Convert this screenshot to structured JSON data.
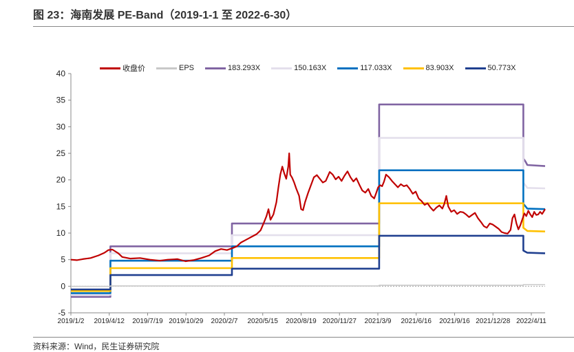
{
  "figure": {
    "title": "图 23：海南发展 PE-Band（2019-1-1 至 2022-6-30）",
    "source": "资料来源：Wind，民生证券研究院"
  },
  "colors": {
    "price": "#c00000",
    "eps": "#c8c8c8",
    "b1": "#8064a2",
    "b2": "#e4dfec",
    "b3": "#0070c0",
    "b4": "#ffc000",
    "b5": "#1f3f8f"
  },
  "chart_data": {
    "type": "line",
    "title": "",
    "xlabel": "",
    "ylabel": "",
    "ylim": [
      -5,
      40
    ],
    "yticks": [
      "40",
      "35",
      "30",
      "25",
      "20",
      "15",
      "10",
      "5",
      "0",
      "-5"
    ],
    "xticks": [
      "2019/1/2",
      "2019/4/12",
      "2019/7/19",
      "2019/10/29",
      "2020/2/7",
      "2020/5/15",
      "2020/8/19",
      "2020/11/27",
      "2021/3/9",
      "2021/6/16",
      "2021/9/16",
      "2021/12/28",
      "2022/4/11"
    ],
    "grid": false,
    "legend_position": "top",
    "series": [
      {
        "name": "收盘价",
        "color_key": "price",
        "points": [
          [
            0,
            5.0
          ],
          [
            6,
            4.9
          ],
          [
            12,
            5.1
          ],
          [
            20,
            5.3
          ],
          [
            28,
            5.8
          ],
          [
            34,
            6.3
          ],
          [
            38,
            6.8
          ],
          [
            42,
            6.9
          ],
          [
            48,
            6.2
          ],
          [
            52,
            5.5
          ],
          [
            60,
            5.2
          ],
          [
            70,
            5.3
          ],
          [
            80,
            5.0
          ],
          [
            90,
            4.8
          ],
          [
            98,
            5.0
          ],
          [
            108,
            5.1
          ],
          [
            116,
            4.7
          ],
          [
            124,
            4.9
          ],
          [
            132,
            5.3
          ],
          [
            140,
            5.8
          ],
          [
            146,
            6.6
          ],
          [
            152,
            7.0
          ],
          [
            158,
            6.8
          ],
          [
            164,
            7.2
          ],
          [
            168,
            7.5
          ],
          [
            172,
            8.2
          ],
          [
            176,
            8.6
          ],
          [
            180,
            9.0
          ],
          [
            184,
            9.4
          ],
          [
            188,
            9.8
          ],
          [
            192,
            10.5
          ],
          [
            195,
            11.8
          ],
          [
            198,
            13.2
          ],
          [
            200,
            14.5
          ],
          [
            202,
            12.5
          ],
          [
            205,
            13.5
          ],
          [
            208,
            15.8
          ],
          [
            210,
            18.5
          ],
          [
            212,
            21.0
          ],
          [
            214,
            22.5
          ],
          [
            216,
            21.2
          ],
          [
            218,
            20.2
          ],
          [
            220,
            22.5
          ],
          [
            221,
            25.0
          ],
          [
            222,
            21.0
          ],
          [
            224,
            20.4
          ],
          [
            226,
            19.5
          ],
          [
            228,
            18.4
          ],
          [
            231,
            17.0
          ],
          [
            233,
            14.5
          ],
          [
            235,
            14.3
          ],
          [
            237,
            15.8
          ],
          [
            240,
            17.5
          ],
          [
            243,
            19.0
          ],
          [
            246,
            20.5
          ],
          [
            249,
            20.9
          ],
          [
            252,
            20.2
          ],
          [
            255,
            19.5
          ],
          [
            258,
            19.8
          ],
          [
            262,
            21.5
          ],
          [
            265,
            21.0
          ],
          [
            268,
            20.1
          ],
          [
            271,
            20.6
          ],
          [
            274,
            19.8
          ],
          [
            277,
            20.8
          ],
          [
            280,
            21.6
          ],
          [
            283,
            20.5
          ],
          [
            286,
            19.7
          ],
          [
            289,
            20.3
          ],
          [
            292,
            19.1
          ],
          [
            295,
            18.0
          ],
          [
            298,
            17.6
          ],
          [
            301,
            18.3
          ],
          [
            304,
            17.0
          ],
          [
            307,
            16.5
          ],
          [
            309,
            17.5
          ],
          [
            311,
            18.6
          ],
          [
            313,
            19.0
          ],
          [
            315,
            18.8
          ],
          [
            317,
            19.7
          ],
          [
            319,
            21.0
          ],
          [
            322,
            20.5
          ],
          [
            325,
            19.8
          ],
          [
            328,
            19.2
          ],
          [
            331,
            18.6
          ],
          [
            334,
            19.2
          ],
          [
            337,
            18.8
          ],
          [
            340,
            19.0
          ],
          [
            343,
            18.3
          ],
          [
            346,
            17.4
          ],
          [
            349,
            17.8
          ],
          [
            352,
            16.5
          ],
          [
            355,
            16.0
          ],
          [
            358,
            15.3
          ],
          [
            361,
            15.6
          ],
          [
            364,
            14.8
          ],
          [
            367,
            14.2
          ],
          [
            370,
            14.8
          ],
          [
            373,
            15.2
          ],
          [
            376,
            14.6
          ],
          [
            378,
            15.5
          ],
          [
            380,
            17.0
          ],
          [
            382,
            15.0
          ],
          [
            385,
            14.0
          ],
          [
            388,
            14.3
          ],
          [
            391,
            13.6
          ],
          [
            394,
            14.0
          ],
          [
            397,
            13.9
          ],
          [
            400,
            13.5
          ],
          [
            403,
            13.0
          ],
          [
            406,
            13.4
          ],
          [
            409,
            13.8
          ],
          [
            412,
            12.8
          ],
          [
            415,
            12.1
          ],
          [
            418,
            11.3
          ],
          [
            421,
            11.0
          ],
          [
            424,
            11.8
          ],
          [
            427,
            11.6
          ],
          [
            430,
            11.2
          ],
          [
            433,
            10.8
          ],
          [
            436,
            10.2
          ],
          [
            439,
            10.0
          ],
          [
            442,
            9.9
          ],
          [
            445,
            10.6
          ],
          [
            447,
            12.8
          ],
          [
            449,
            13.5
          ],
          [
            451,
            11.8
          ],
          [
            453,
            10.7
          ],
          [
            455,
            11.5
          ],
          [
            457,
            12.6
          ],
          [
            459,
            13.7
          ],
          [
            461,
            13.2
          ],
          [
            463,
            14.2
          ],
          [
            465,
            13.5
          ],
          [
            467,
            13.0
          ],
          [
            469,
            14.0
          ],
          [
            471,
            13.4
          ],
          [
            473,
            13.5
          ],
          [
            475,
            14.0
          ],
          [
            477,
            13.6
          ],
          [
            479,
            14.2
          ],
          [
            480,
            14.5
          ]
        ]
      },
      {
        "name": "EPS",
        "color_key": "eps",
        "points": [
          [
            0,
            -0.04
          ],
          [
            40,
            -0.04
          ],
          [
            40,
            0.05
          ],
          [
            163,
            0.05
          ],
          [
            163,
            0.06
          ],
          [
            312,
            0.06
          ],
          [
            312,
            0.19
          ],
          [
            458,
            0.19
          ],
          [
            458,
            0.3
          ],
          [
            480,
            0.3
          ]
        ]
      },
      {
        "name": "183.293X",
        "color_key": "b1",
        "points": [
          [
            0,
            -2.0
          ],
          [
            40,
            -2.0
          ],
          [
            40,
            7.5
          ],
          [
            163,
            7.5
          ],
          [
            163,
            11.8
          ],
          [
            312,
            11.8
          ],
          [
            312,
            34.2
          ],
          [
            458,
            34.2
          ],
          [
            458,
            24.0
          ],
          [
            460,
            23.5
          ],
          [
            462,
            22.8
          ],
          [
            480,
            22.6
          ]
        ]
      },
      {
        "name": "150.163X",
        "color_key": "b2",
        "points": [
          [
            0,
            -1.6
          ],
          [
            40,
            -1.6
          ],
          [
            40,
            6.2
          ],
          [
            163,
            6.2
          ],
          [
            163,
            9.6
          ],
          [
            312,
            9.6
          ],
          [
            312,
            27.9
          ],
          [
            458,
            27.9
          ],
          [
            458,
            19.5
          ],
          [
            462,
            18.5
          ],
          [
            480,
            18.4
          ]
        ]
      },
      {
        "name": "117.033X",
        "color_key": "b3",
        "points": [
          [
            0,
            -1.3
          ],
          [
            40,
            -1.3
          ],
          [
            40,
            4.8
          ],
          [
            163,
            4.8
          ],
          [
            163,
            7.5
          ],
          [
            312,
            7.5
          ],
          [
            312,
            21.8
          ],
          [
            458,
            21.8
          ],
          [
            458,
            15.5
          ],
          [
            462,
            14.6
          ],
          [
            480,
            14.5
          ]
        ]
      },
      {
        "name": "83.903X",
        "color_key": "b4",
        "points": [
          [
            0,
            -0.9
          ],
          [
            40,
            -0.9
          ],
          [
            40,
            3.4
          ],
          [
            163,
            3.4
          ],
          [
            163,
            5.3
          ],
          [
            312,
            5.3
          ],
          [
            312,
            15.6
          ],
          [
            458,
            15.6
          ],
          [
            458,
            11.0
          ],
          [
            462,
            10.4
          ],
          [
            480,
            10.3
          ]
        ]
      },
      {
        "name": "50.773X",
        "color_key": "b5",
        "points": [
          [
            0,
            -0.6
          ],
          [
            40,
            -0.6
          ],
          [
            40,
            2.1
          ],
          [
            163,
            2.1
          ],
          [
            163,
            3.3
          ],
          [
            312,
            3.3
          ],
          [
            312,
            9.5
          ],
          [
            458,
            9.5
          ],
          [
            458,
            6.7
          ],
          [
            462,
            6.3
          ],
          [
            480,
            6.2
          ]
        ]
      }
    ]
  }
}
